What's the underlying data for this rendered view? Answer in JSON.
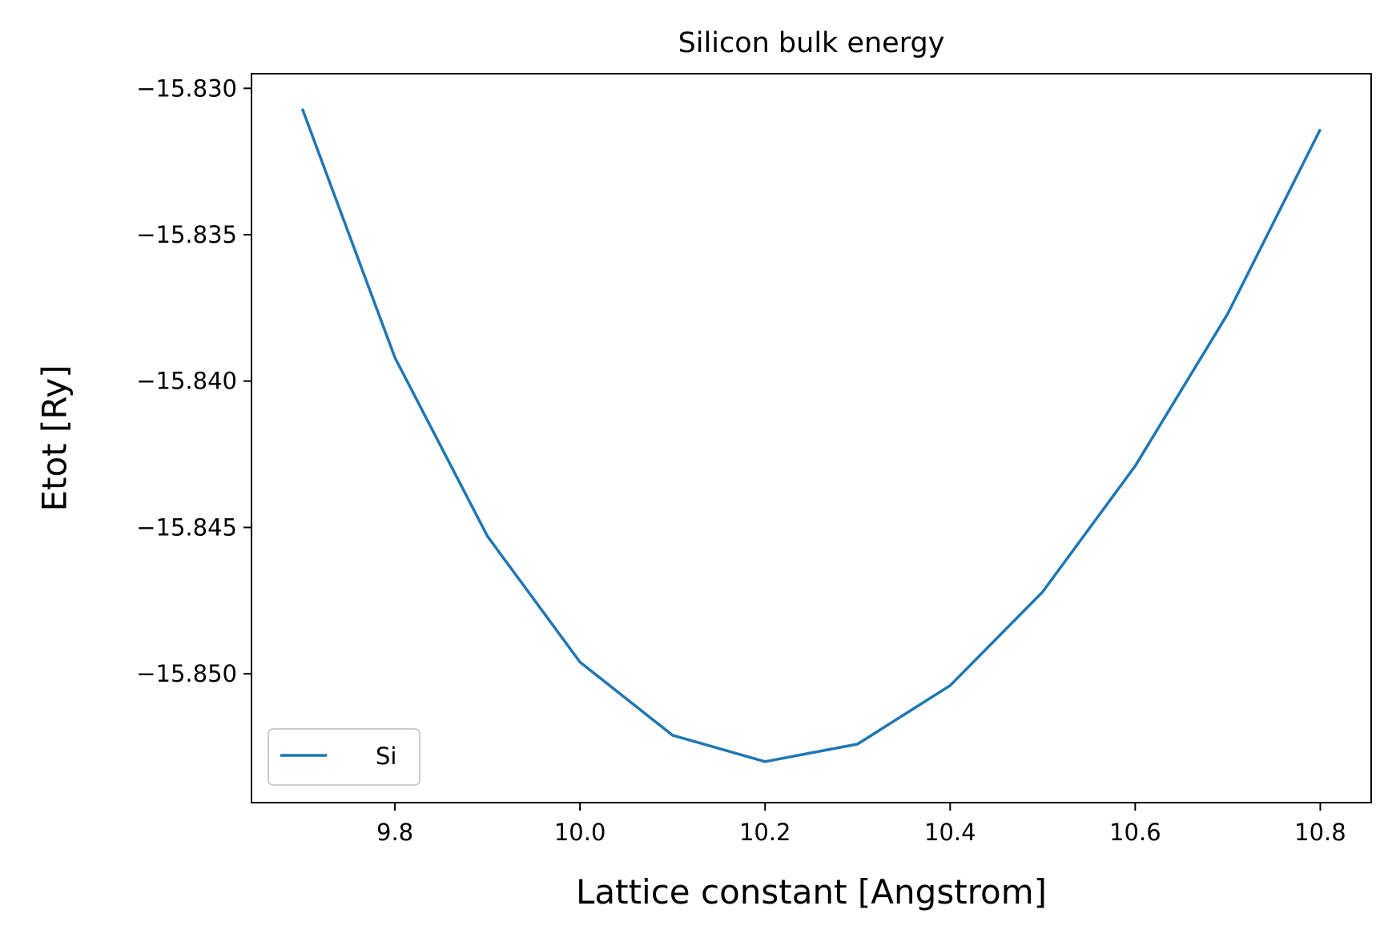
{
  "chart_data": {
    "type": "line",
    "title": "Silicon bulk energy",
    "xlabel": "Lattice constant [Angstrom]",
    "ylabel": "Etot [Ry]",
    "xlim": [
      9.645,
      10.855
    ],
    "ylim": [
      -15.8544,
      -15.8295
    ],
    "x_ticks": [
      9.8,
      10.0,
      10.2,
      10.4,
      10.6,
      10.8
    ],
    "x_tick_labels": [
      "9.8",
      "10.0",
      "10.2",
      "10.4",
      "10.6",
      "10.8"
    ],
    "y_ticks": [
      -15.83,
      -15.835,
      -15.84,
      -15.845,
      -15.85
    ],
    "y_tick_labels": [
      "−15.830",
      "−15.835",
      "−15.840",
      "−15.845",
      "−15.850"
    ],
    "grid": false,
    "legend_position": "lower-left",
    "series": [
      {
        "name": "Si",
        "color": "#1f77b4",
        "x": [
          9.7,
          9.8,
          9.9,
          10.0,
          10.1,
          10.2,
          10.3,
          10.4,
          10.5,
          10.6,
          10.7,
          10.8
        ],
        "y": [
          -15.8307,
          -15.8392,
          -15.8453,
          -15.8496,
          -15.8521,
          -15.853,
          -15.8524,
          -15.8504,
          -15.8472,
          -15.8429,
          -15.8377,
          -15.8314
        ]
      }
    ]
  }
}
